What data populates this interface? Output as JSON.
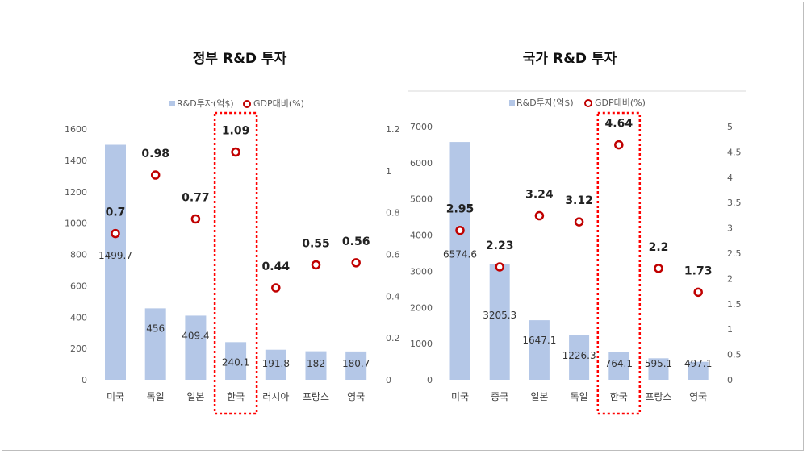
{
  "chart_data": [
    {
      "type": "bar",
      "title": "정부 R&D 투자",
      "legend": [
        "R&D투자(억$)",
        "GDP대비(%)"
      ],
      "categories": [
        "미국",
        "독일",
        "일본",
        "한국",
        "러시아",
        "프랑스",
        "영국"
      ],
      "series": [
        {
          "name": "R&D투자(억$)",
          "type": "bar",
          "axis": "left",
          "values": [
            1499.7,
            456,
            409.4,
            240.1,
            191.8,
            182,
            180.7
          ]
        },
        {
          "name": "GDP대비(%)",
          "type": "scatter",
          "axis": "right",
          "values": [
            0.7,
            0.98,
            0.77,
            1.09,
            0.44,
            0.55,
            0.56
          ]
        }
      ],
      "ylim": [
        0,
        1600
      ],
      "y_ticks": [
        "0",
        "200",
        "400",
        "600",
        "800",
        "1000",
        "1200",
        "1400",
        "1600"
      ],
      "y2lim": [
        0,
        1.2
      ],
      "y2_ticks": [
        "0",
        "0.2",
        "0.4",
        "0.6",
        "0.8",
        "1",
        "1.2"
      ],
      "highlight": "한국"
    },
    {
      "type": "bar",
      "title": "국가 R&D 투자",
      "legend": [
        "R&D투자(억$)",
        "GDP대비(%)"
      ],
      "categories": [
        "미국",
        "중국",
        "일본",
        "독일",
        "한국",
        "프랑스",
        "영국"
      ],
      "series": [
        {
          "name": "R&D투자(억$)",
          "type": "bar",
          "axis": "left",
          "values": [
            6574.6,
            3205.3,
            1647.1,
            1226.3,
            764.1,
            595.1,
            497.1
          ]
        },
        {
          "name": "GDP대비(%)",
          "type": "scatter",
          "axis": "right",
          "values": [
            2.95,
            2.23,
            3.24,
            3.12,
            4.64,
            2.2,
            1.73
          ]
        }
      ],
      "ylim": [
        0,
        7000
      ],
      "y_ticks": [
        "0",
        "1000",
        "2000",
        "3000",
        "4000",
        "5000",
        "6000",
        "7000"
      ],
      "y2lim": [
        0,
        5
      ],
      "y2_ticks": [
        "0",
        "0.5",
        "1",
        "1.5",
        "2",
        "2.5",
        "3",
        "3.5",
        "4",
        "4.5",
        "5"
      ],
      "highlight": "한국"
    }
  ],
  "colors": {
    "bar": "#b4c7e7",
    "marker": "#c00000",
    "highlight": "#ff0000",
    "text": "#404040"
  }
}
